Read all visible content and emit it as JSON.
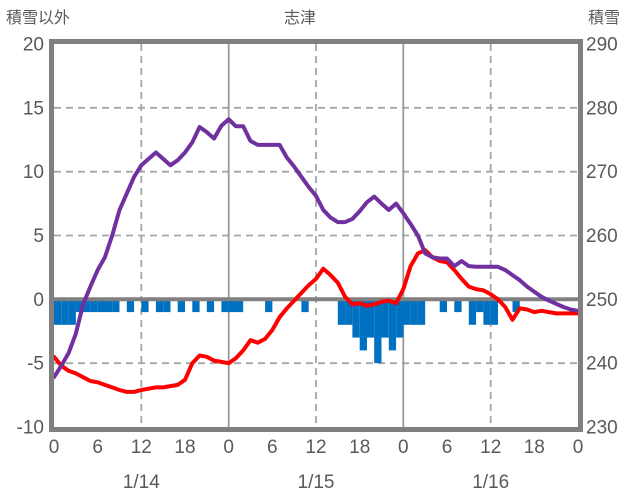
{
  "chart_data": {
    "type": "combo",
    "title": "志津",
    "axes": {
      "left": {
        "label": "積雪以外",
        "min": -10,
        "max": 20,
        "ticks": [
          20,
          15,
          10,
          5,
          0,
          -5,
          -10
        ]
      },
      "right": {
        "label": "積雪",
        "min": 230,
        "max": 290,
        "ticks": [
          290,
          280,
          270,
          260,
          250,
          240,
          230
        ]
      },
      "x": {
        "total_hours": 72,
        "tick_interval_hours": 6,
        "hour_tick_labels": [
          "0",
          "6",
          "12",
          "18",
          "0",
          "6",
          "12",
          "18",
          "0",
          "6",
          "12",
          "18",
          "0"
        ],
        "date_labels": [
          "1/14",
          "1/15",
          "1/16"
        ],
        "noon_gridline_style": "dashed",
        "midnight_gridline_style": "solid"
      }
    },
    "grid": {
      "horizontal_dashed_at": [
        15,
        10,
        5,
        -5
      ],
      "zero_line_at": 0
    },
    "colors": {
      "grid": "#A6A6A6",
      "grid_solid": "#9A9A9A",
      "frame": "#808080",
      "text": "#595959"
    },
    "series": [
      {
        "name": "blue-bars",
        "type": "bar",
        "axis": "left",
        "color": "#0070C0",
        "values": [
          -2,
          -2,
          -2,
          -1,
          -1,
          -1,
          -1,
          -1,
          -1,
          0,
          -1,
          0,
          -1,
          0,
          -1,
          -1,
          0,
          -1,
          0,
          -1,
          0,
          -1,
          0,
          -1,
          -1,
          -1,
          0,
          0,
          0,
          -1,
          0,
          0,
          0,
          0,
          -1,
          0,
          0,
          0,
          0,
          -2,
          -2,
          -3,
          -4,
          -3,
          -5,
          -3,
          -4,
          -3,
          -2,
          -2,
          -2,
          0,
          0,
          -1,
          0,
          -1,
          0,
          -2,
          -1,
          -2,
          -2,
          0,
          0,
          -1,
          0,
          0,
          0,
          0,
          0,
          0,
          0,
          0
        ]
      },
      {
        "name": "red-line",
        "type": "line",
        "axis": "left",
        "color": "#FF0000",
        "values": [
          -4.5,
          -5.2,
          -5.6,
          -5.8,
          -6.1,
          -6.4,
          -6.5,
          -6.7,
          -6.9,
          -7.1,
          -7.25,
          -7.25,
          -7.1,
          -7.0,
          -6.9,
          -6.9,
          -6.8,
          -6.7,
          -6.3,
          -5.0,
          -4.4,
          -4.5,
          -4.8,
          -4.9,
          -5.0,
          -4.6,
          -4.0,
          -3.2,
          -3.4,
          -3.1,
          -2.4,
          -1.4,
          -0.7,
          -0.1,
          0.5,
          1.1,
          1.6,
          2.4,
          1.9,
          1.3,
          0.2,
          -0.4,
          -0.3,
          -0.5,
          -0.4,
          -0.2,
          -0.1,
          -0.3,
          0.8,
          2.6,
          3.6,
          3.85,
          3.3,
          3.0,
          2.9,
          2.3,
          1.6,
          1.0,
          0.8,
          0.7,
          0.4,
          0.0,
          -0.6,
          -1.6,
          -0.7,
          -0.8,
          -1.0,
          -0.9,
          -1.0,
          -1.1,
          -1.1,
          -1.1,
          -1.1
        ]
      },
      {
        "name": "purple-line",
        "type": "line",
        "axis": "right",
        "color": "#7030A0",
        "values": [
          237.8,
          239.6,
          241.6,
          244.6,
          249.2,
          252.0,
          254.6,
          256.6,
          260.0,
          264.0,
          266.6,
          269.2,
          271.0,
          272.0,
          273.0,
          272.0,
          271.0,
          271.8,
          273.0,
          274.6,
          277.0,
          276.2,
          275.2,
          277.2,
          278.2,
          277.1,
          277.1,
          274.8,
          274.2,
          274.2,
          274.2,
          274.2,
          272.2,
          270.8,
          269.2,
          267.6,
          266.2,
          264.0,
          262.8,
          262.1,
          262.1,
          262.6,
          263.8,
          265.2,
          266.1,
          265.0,
          264.0,
          265.0,
          263.5,
          261.8,
          260.0,
          257.2,
          256.6,
          256.4,
          256.4,
          255.2,
          256.0,
          255.2,
          255.1,
          255.1,
          255.1,
          255.1,
          254.6,
          253.8,
          253.0,
          252.0,
          251.2,
          250.4,
          249.8,
          249.3,
          248.8,
          248.4,
          248.2
        ]
      }
    ]
  }
}
